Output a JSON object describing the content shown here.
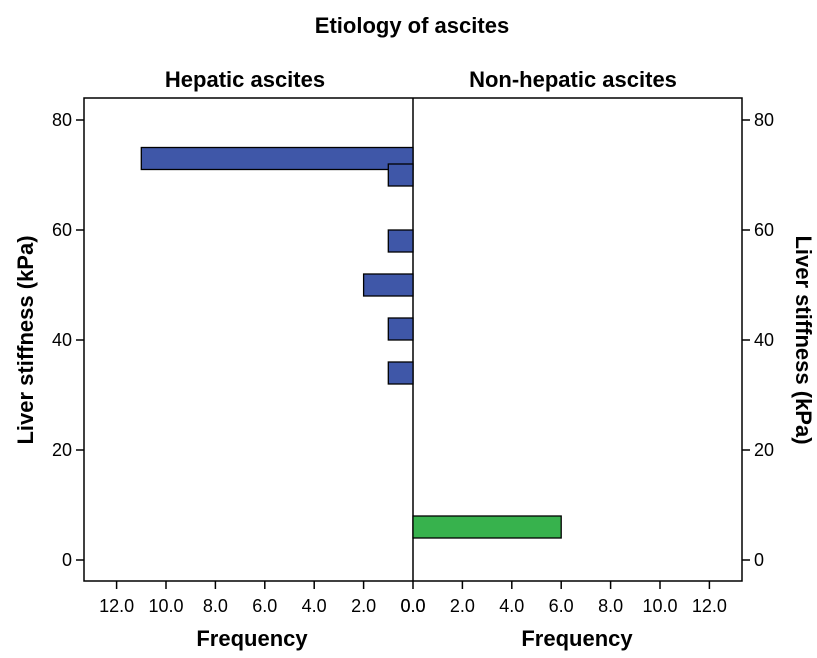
{
  "chart_data": {
    "type": "bar",
    "orientation": "horizontal",
    "title": "Etiology of ascites",
    "panels": [
      {
        "name": "Hepatic ascites",
        "side": "left",
        "color": "#3f57a8",
        "bars": [
          {
            "y": 73,
            "frequency": 11
          },
          {
            "y": 70,
            "frequency": 1
          },
          {
            "y": 58,
            "frequency": 1
          },
          {
            "y": 50,
            "frequency": 2
          },
          {
            "y": 42,
            "frequency": 1
          },
          {
            "y": 34,
            "frequency": 1
          }
        ]
      },
      {
        "name": "Non-hepatic ascites",
        "side": "right",
        "color": "#37b24d",
        "bars": [
          {
            "y": 6,
            "frequency": 6
          }
        ]
      }
    ],
    "bin_height": 4,
    "ylabel_left": "Liver stiffness (kPa)",
    "ylabel_right": "Liver stiffness (kPa)",
    "xlabel_left": "Frequency",
    "xlabel_right": "Frequency",
    "ylim": [
      -3,
      85
    ],
    "yticks": [
      0,
      20,
      40,
      60,
      80
    ],
    "xlim": [
      0,
      13.2
    ],
    "xticks": [
      0,
      2,
      4,
      6,
      8,
      10,
      12
    ],
    "xtick_labels": [
      "0.0",
      "2.0",
      "4.0",
      "6.0",
      "8.0",
      "10.0",
      "12.0"
    ]
  }
}
